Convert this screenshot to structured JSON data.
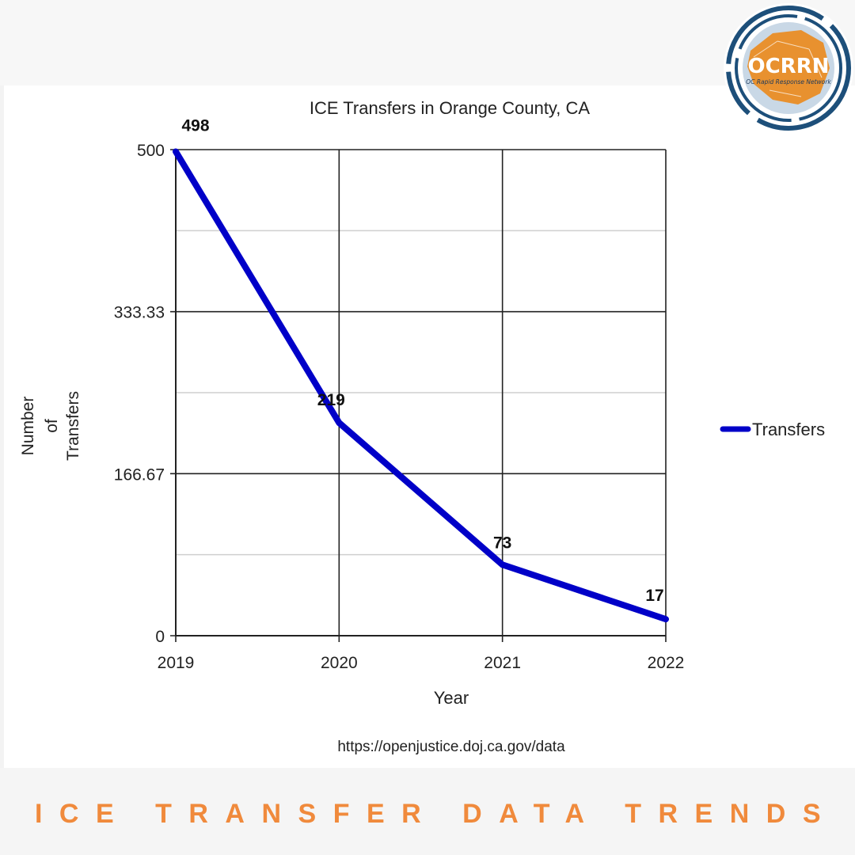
{
  "logo": {
    "acronym": "OCRRN",
    "name": "OC Rapid Response Network",
    "colors": {
      "ring": "#1d4f7a",
      "badge": "#e8912f",
      "text": "#ffffff"
    }
  },
  "footer": {
    "title": "ICE TRANSFER DATA TRENDS",
    "color": "#f08a3c"
  },
  "chart_data": {
    "type": "line",
    "title": "ICE Transfers in Orange County, CA",
    "xlabel": "Year",
    "ylabel_lines": [
      "Number",
      "of",
      "Transfers"
    ],
    "categories": [
      "2019",
      "2020",
      "2021",
      "2022"
    ],
    "series": [
      {
        "name": "Transfers",
        "values": [
          498,
          219,
          73,
          17
        ],
        "color": "#0000c8"
      }
    ],
    "data_labels": [
      "498",
      "219",
      "73",
      "17"
    ],
    "ylim": [
      0,
      500
    ],
    "y_ticks": [
      0,
      166.67,
      333.33,
      500
    ],
    "y_tick_labels": [
      "0",
      "166.67",
      "333.33",
      "500"
    ],
    "minor_gridlines": [
      83.33,
      250,
      416.67
    ],
    "grid": true,
    "legend_position": "right",
    "source": "https://openjustice.doj.ca.gov/data"
  }
}
